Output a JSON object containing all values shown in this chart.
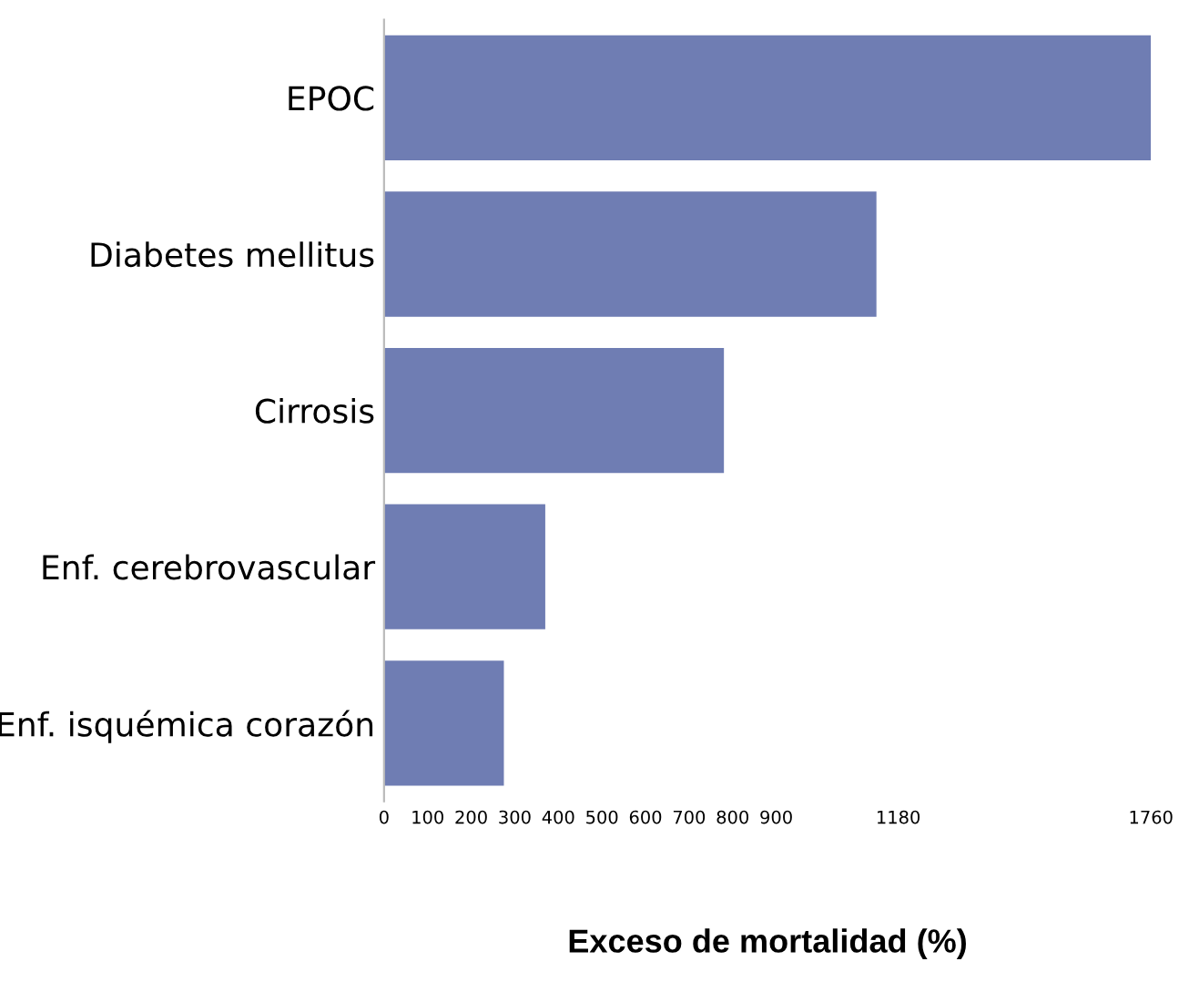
{
  "chart_data": {
    "type": "bar",
    "orientation": "horizontal",
    "xlabel": "Exceso de mortalidad (%)",
    "categories": [
      "EPOC",
      "Diabetes mellitus",
      "Cirrosis",
      "Enf. cerebrovascular",
      "Enf. isquémica corazón"
    ],
    "values": [
      1760,
      1130,
      780,
      370,
      275
    ],
    "color": "#6f7db3",
    "xlim": [
      0,
      1760
    ],
    "xticks": [
      0,
      100,
      200,
      300,
      400,
      500,
      600,
      700,
      800,
      900,
      1180,
      1760
    ],
    "grid": false,
    "legend": false
  }
}
